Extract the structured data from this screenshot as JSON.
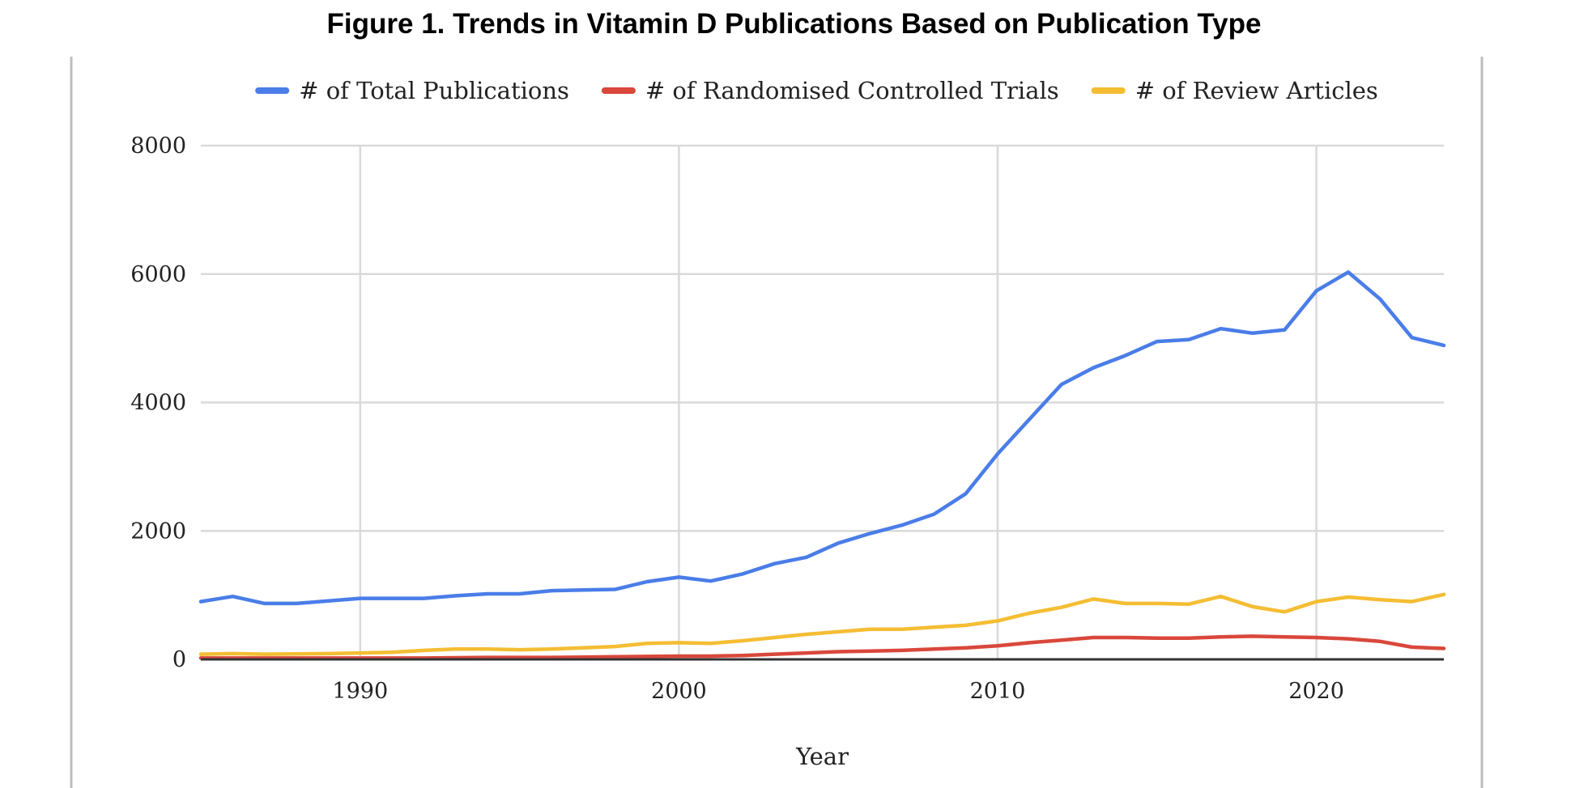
{
  "figure_title": "Figure 1. Trends in Vitamin D Publications Based on Publication Type",
  "chart_data": {
    "type": "line",
    "xlabel": "Year",
    "ylabel": "",
    "xlim": [
      1985,
      2024
    ],
    "ylim": [
      0,
      8000
    ],
    "x_ticks": [
      1990,
      2000,
      2010,
      2020
    ],
    "y_ticks": [
      0,
      2000,
      4000,
      6000,
      8000
    ],
    "grid": true,
    "legend_position": "top",
    "x": [
      1985,
      1986,
      1987,
      1988,
      1989,
      1990,
      1991,
      1992,
      1993,
      1994,
      1995,
      1996,
      1997,
      1998,
      1999,
      2000,
      2001,
      2002,
      2003,
      2004,
      2005,
      2006,
      2007,
      2008,
      2009,
      2010,
      2011,
      2012,
      2013,
      2014,
      2015,
      2016,
      2017,
      2018,
      2019,
      2020,
      2021,
      2022,
      2023,
      2024
    ],
    "series": [
      {
        "name": "# of Total Publications",
        "color": "#4a7de8",
        "values": [
          900,
          980,
          870,
          870,
          910,
          950,
          950,
          950,
          990,
          1020,
          1020,
          1070,
          1080,
          1090,
          1210,
          1280,
          1220,
          1330,
          1490,
          1590,
          1810,
          1960,
          2090,
          2260,
          2580,
          3200,
          3740,
          4280,
          4540,
          4730,
          4950,
          4980,
          5150,
          5080,
          5130,
          5740,
          6030,
          5610,
          5010,
          4890
        ]
      },
      {
        "name": "# of Randomised Controlled Trials",
        "color": "#d9483b",
        "values": [
          20,
          20,
          20,
          20,
          20,
          20,
          20,
          20,
          25,
          30,
          30,
          30,
          35,
          40,
          45,
          50,
          50,
          60,
          80,
          100,
          120,
          130,
          140,
          160,
          180,
          210,
          260,
          300,
          340,
          340,
          330,
          330,
          350,
          360,
          350,
          340,
          320,
          280,
          190,
          170
        ]
      },
      {
        "name": "# of Review Articles",
        "color": "#f4bd33",
        "values": [
          80,
          90,
          80,
          85,
          90,
          100,
          110,
          140,
          160,
          160,
          150,
          160,
          180,
          200,
          250,
          260,
          250,
          290,
          340,
          390,
          430,
          470,
          470,
          500,
          530,
          600,
          720,
          810,
          940,
          870,
          870,
          860,
          980,
          820,
          740,
          900,
          970,
          930,
          900,
          1010
        ]
      }
    ]
  }
}
